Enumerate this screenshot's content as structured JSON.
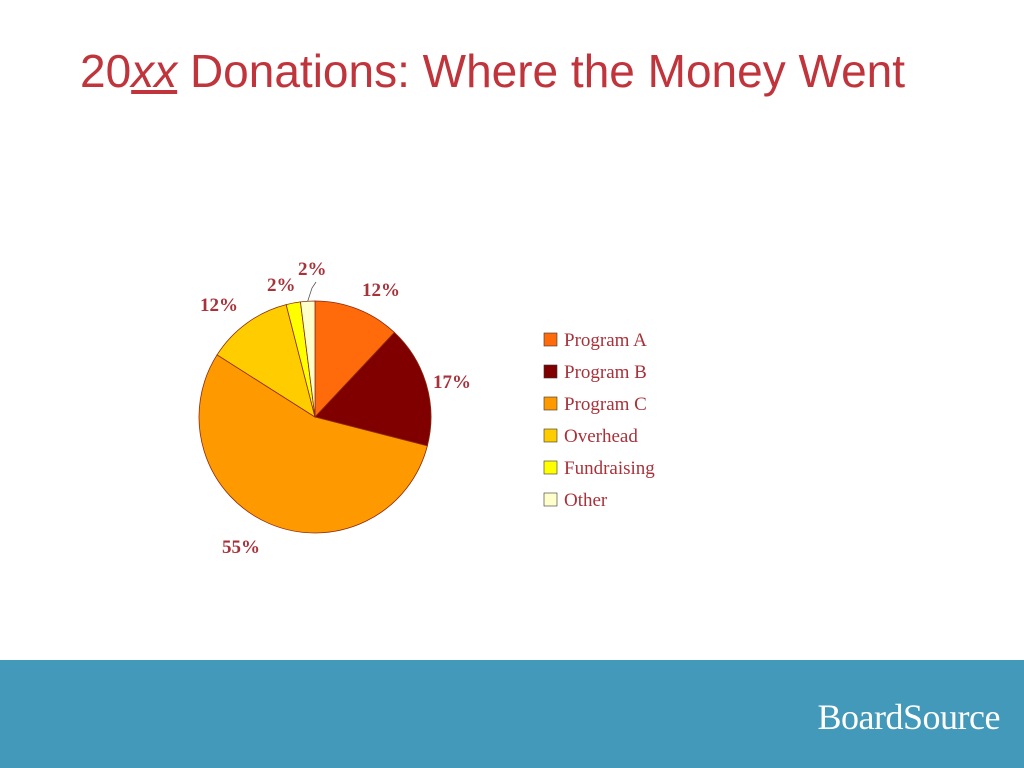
{
  "title": {
    "prefix": "20",
    "italic": "xx",
    "rest": " Donations: Where the Money Went"
  },
  "chart_data": {
    "type": "pie",
    "slices": [
      {
        "name": "Program A",
        "value": 12,
        "label": "12%",
        "color": "#ff6a0a"
      },
      {
        "name": "Program B",
        "value": 17,
        "label": "17%",
        "color": "#800000"
      },
      {
        "name": "Program C",
        "value": 55,
        "label": "55%",
        "color": "#ff9900"
      },
      {
        "name": "Overhead",
        "value": 12,
        "label": "12%",
        "color": "#ffcc00"
      },
      {
        "name": "Fundraising",
        "value": 2,
        "label": "2%",
        "color": "#ffff00"
      },
      {
        "name": "Other",
        "value": 2,
        "label": "2%",
        "color": "#ffffcc"
      }
    ],
    "legend_position": "right"
  },
  "footer": {
    "logo": "BoardSource",
    "background": "#4399b9"
  }
}
